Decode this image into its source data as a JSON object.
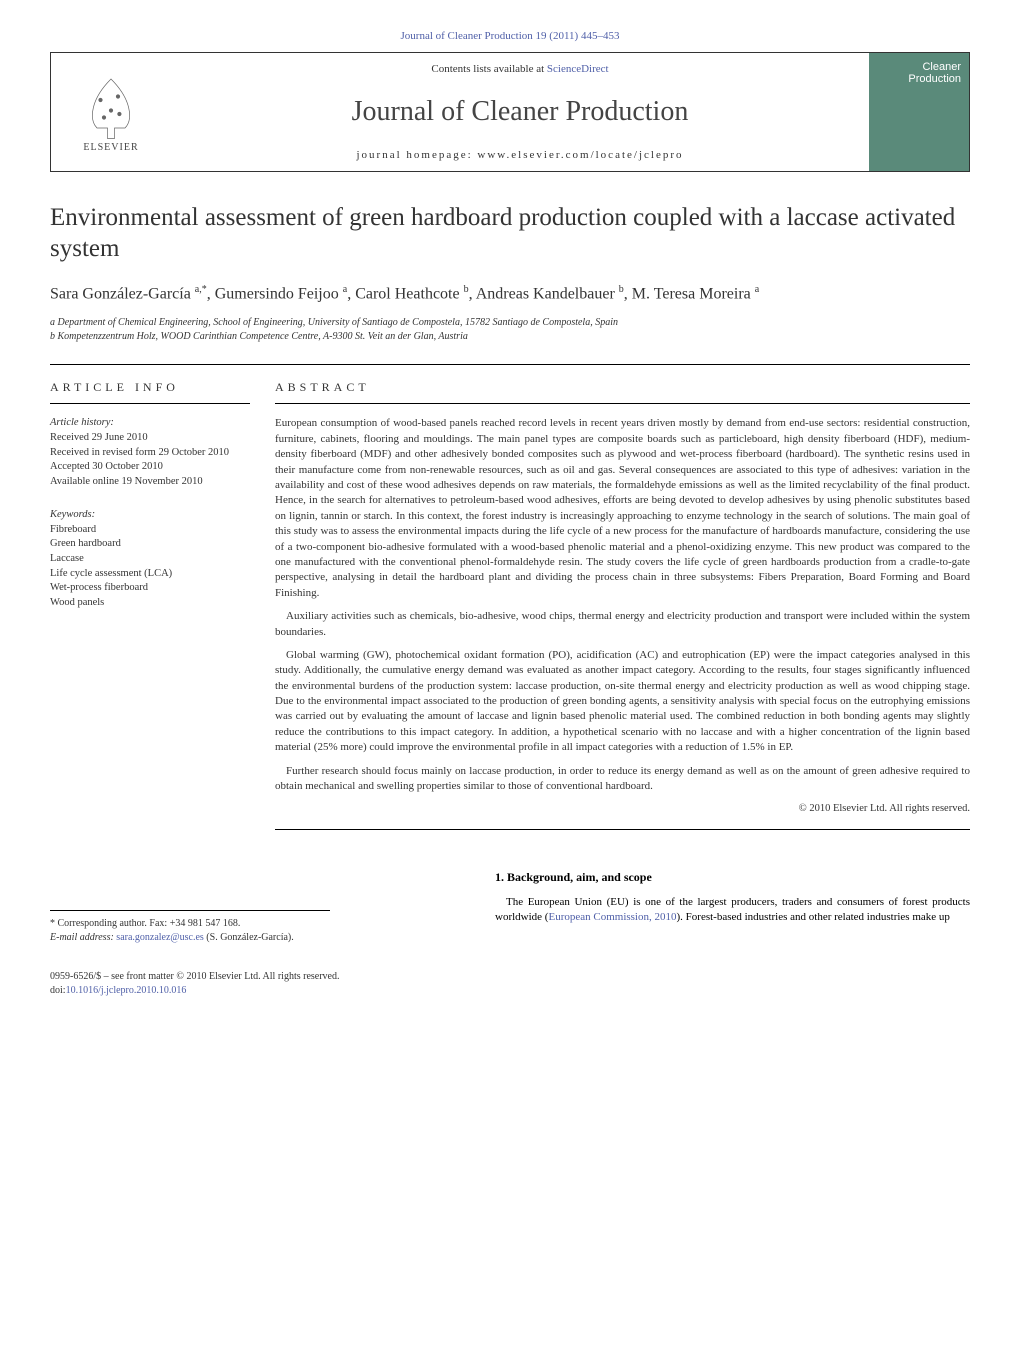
{
  "header": {
    "citation": "Journal of Cleaner Production 19 (2011) 445–453",
    "contents_prefix": "Contents lists available at ",
    "contents_link": "ScienceDirect",
    "journal_name": "Journal of Cleaner Production",
    "homepage_prefix": "journal homepage: ",
    "homepage_url": "www.elsevier.com/locate/jclepro",
    "elsevier": "ELSEVIER",
    "cleaner_line1": "Cleaner",
    "cleaner_line2": "Production"
  },
  "title": "Environmental assessment of green hardboard production coupled with a laccase activated system",
  "authors_html": "Sara González-García <sup>a,*</sup>, Gumersindo Feijoo <sup>a</sup>, Carol Heathcote <sup>b</sup>, Andreas Kandelbauer <sup>b</sup>, M. Teresa Moreira <sup>a</sup>",
  "affiliations": {
    "a": "a Department of Chemical Engineering, School of Engineering, University of Santiago de Compostela, 15782 Santiago de Compostela, Spain",
    "b": "b Kompetenzzentrum Holz, WOOD Carinthian Competence Centre, A-9300 St. Veit an der Glan, Austria"
  },
  "article_info_heading": "ARTICLE INFO",
  "abstract_heading": "ABSTRACT",
  "history": {
    "title": "Article history:",
    "received": "Received 29 June 2010",
    "revised": "Received in revised form 29 October 2010",
    "accepted": "Accepted 30 October 2010",
    "online": "Available online 19 November 2010"
  },
  "keywords": {
    "title": "Keywords:",
    "items": [
      "Fibreboard",
      "Green hardboard",
      "Laccase",
      "Life cycle assessment (LCA)",
      "Wet-process fiberboard",
      "Wood panels"
    ]
  },
  "abstract": {
    "p1": "European consumption of wood-based panels reached record levels in recent years driven mostly by demand from end-use sectors: residential construction, furniture, cabinets, flooring and mouldings. The main panel types are composite boards such as particleboard, high density fiberboard (HDF), medium-density fiberboard (MDF) and other adhesively bonded composites such as plywood and wet-process fiberboard (hardboard). The synthetic resins used in their manufacture come from non-renewable resources, such as oil and gas. Several consequences are associated to this type of adhesives: variation in the availability and cost of these wood adhesives depends on raw materials, the formaldehyde emissions as well as the limited recyclability of the final product. Hence, in the search for alternatives to petroleum-based wood adhesives, efforts are being devoted to develop adhesives by using phenolic substitutes based on lignin, tannin or starch. In this context, the forest industry is increasingly approaching to enzyme technology in the search of solutions. The main goal of this study was to assess the environmental impacts during the life cycle of a new process for the manufacture of hardboards manufacture, considering the use of a two-component bio-adhesive formulated with a wood-based phenolic material and a phenol-oxidizing enzyme. This new product was compared to the one manufactured with the conventional phenol-formaldehyde resin. The study covers the life cycle of green hardboards production from a cradle-to-gate perspective, analysing in detail the hardboard plant and dividing the process chain in three subsystems: Fibers Preparation, Board Forming and Board Finishing.",
    "p2": "Auxiliary activities such as chemicals, bio-adhesive, wood chips, thermal energy and electricity production and transport were included within the system boundaries.",
    "p3": "Global warming (GW), photochemical oxidant formation (PO), acidification (AC) and eutrophication (EP) were the impact categories analysed in this study. Additionally, the cumulative energy demand was evaluated as another impact category. According to the results, four stages significantly influenced the environmental burdens of the production system: laccase production, on-site thermal energy and electricity production as well as wood chipping stage. Due to the environmental impact associated to the production of green bonding agents, a sensitivity analysis with special focus on the eutrophying emissions was carried out by evaluating the amount of laccase and lignin based phenolic material used. The combined reduction in both bonding agents may slightly reduce the contributions to this impact category. In addition, a hypothetical scenario with no laccase and with a higher concentration of the lignin based material (25% more) could improve the environmental profile in all impact categories with a reduction of 1.5% in EP.",
    "p4": "Further research should focus mainly on laccase production, in order to reduce its energy demand as well as on the amount of green adhesive required to obtain mechanical and swelling properties similar to those of conventional hardboard.",
    "copyright": "© 2010 Elsevier Ltd. All rights reserved."
  },
  "section1": {
    "heading": "1. Background, aim, and scope",
    "text_prefix": "The European Union (EU) is one of the largest producers, traders and consumers of forest products worldwide (",
    "link": "European Commission, 2010",
    "text_suffix": "). Forest-based industries and other related industries make up"
  },
  "footnote": {
    "corr": "* Corresponding author. Fax: +34 981 547 168.",
    "email_label": "E-mail address: ",
    "email": "sara.gonzalez@usc.es",
    "email_suffix": " (S. González-García)."
  },
  "bottom": {
    "line1": "0959-6526/$ – see front matter © 2010 Elsevier Ltd. All rights reserved.",
    "line2_prefix": "doi:",
    "doi": "10.1016/j.jclepro.2010.10.016"
  },
  "colors": {
    "link": "#5060a8",
    "text": "#333333",
    "cover_bg": "#5a8a7a"
  }
}
